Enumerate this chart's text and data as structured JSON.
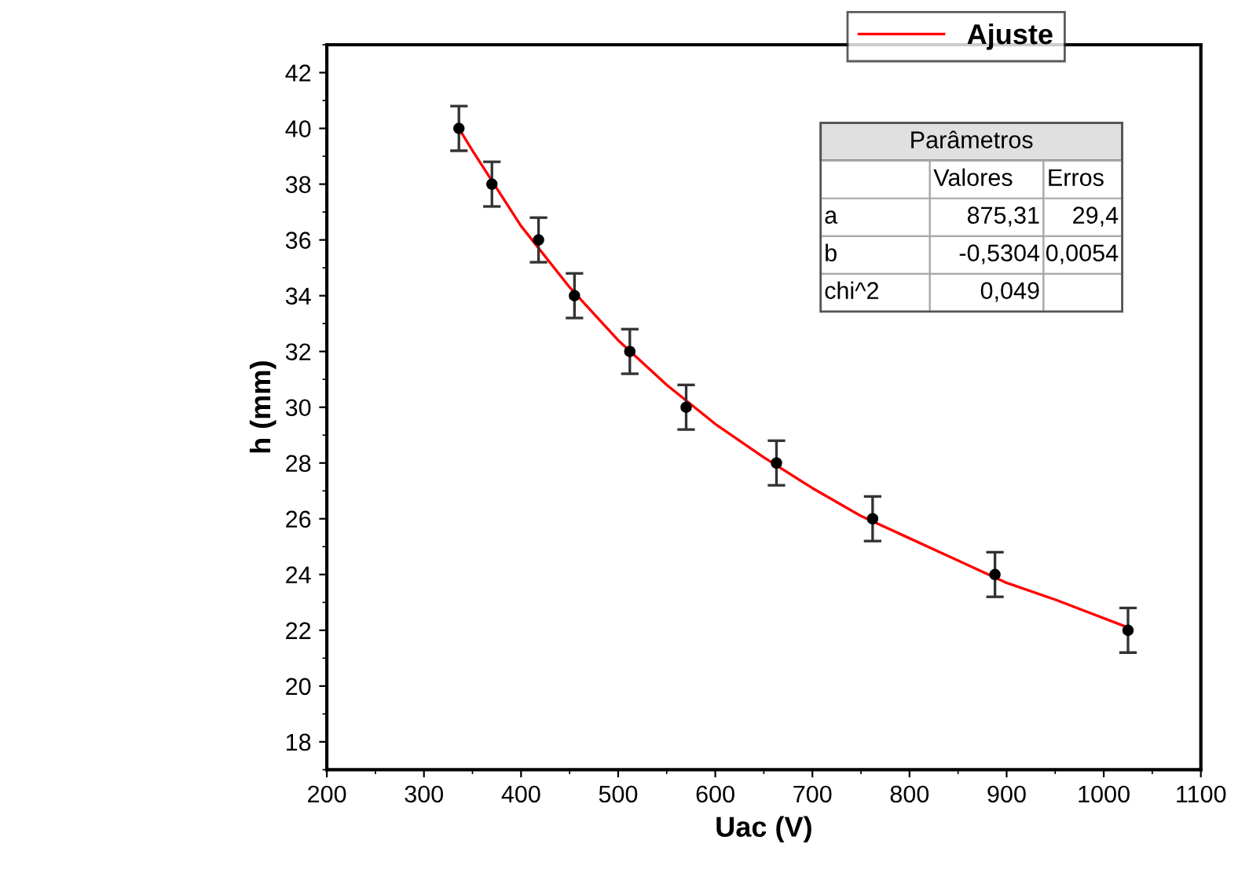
{
  "chart_data": {
    "type": "scatter",
    "xlabel": "Uac (V)",
    "ylabel": "h (mm)",
    "xlim": [
      200,
      1100
    ],
    "xticks": [
      200,
      300,
      400,
      500,
      600,
      700,
      800,
      900,
      1000,
      1100
    ],
    "ylim": [
      17,
      43
    ],
    "yticks": [
      18,
      20,
      22,
      24,
      26,
      28,
      30,
      32,
      34,
      36,
      38,
      40,
      42
    ],
    "grid": false,
    "legend": "top",
    "marker": "circle",
    "series": [
      {
        "color": "#000000",
        "x": [
          336,
          370,
          418,
          455,
          512,
          570,
          663,
          762,
          888,
          1025
        ],
        "values": [
          40,
          38,
          36,
          34,
          32,
          30,
          28,
          26,
          24,
          22
        ],
        "errors": [
          0.8,
          0.8,
          0.8,
          0.8,
          0.8,
          0.8,
          0.8,
          0.8,
          0.8,
          0.8
        ]
      },
      {
        "type": "line",
        "name": "Ajuste",
        "color": "#ff0000",
        "marker": "none",
        "line_style": "solid",
        "x": [
          336,
          350,
          400,
          450,
          500,
          550,
          600,
          650,
          700,
          750,
          800,
          850,
          900,
          950,
          1025
        ],
        "values": [
          40.0,
          39.2,
          36.5,
          34.3,
          32.4,
          30.8,
          29.4,
          28.2,
          27.1,
          26.1,
          25.3,
          24.5,
          23.7,
          23.1,
          22.1
        ]
      }
    ],
    "annotations": [
      "Parâmetros",
      "Valores",
      "Erros",
      "a",
      "875,31",
      "29,4",
      "b",
      "-0,5304",
      "0,0054",
      "chi^2",
      "0,049"
    ]
  }
}
